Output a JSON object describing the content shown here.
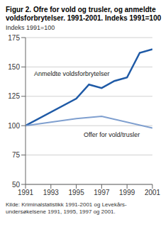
{
  "chart_data": {
    "type": "line",
    "title": "Figur 2. Ofre for vold og trusler, og anmeldte voldsforbrytelser. 1991-2001. Indeks 1991=100",
    "y_label": "Indeks 1991=100",
    "source": "Kilde: Kriminalstatistikk 1991-2001 og Levekårs-undersøkelsene 1991, 1995, 1997 og 2001.",
    "series": [
      {
        "name": "Anmeldte voldsforbrytelser",
        "color": "#1f5aa6",
        "x": [
          1991,
          1995,
          1996,
          1997,
          1998,
          1999,
          2000,
          2001
        ],
        "values": [
          100,
          123,
          135,
          132,
          138,
          141,
          162,
          165
        ]
      },
      {
        "name": "Offer for vold/trusler",
        "color": "#7f9fcf",
        "x": [
          1991,
          1995,
          1997,
          2001
        ],
        "values": [
          100,
          106,
          108,
          98
        ]
      }
    ],
    "xlim": [
      1991,
      2001
    ],
    "xticks": [
      1991,
      1993,
      1995,
      1997,
      1999,
      2001
    ],
    "ylim": [
      50,
      175
    ],
    "yticks": [
      50,
      75,
      100,
      125,
      150,
      175
    ],
    "grid": true
  }
}
